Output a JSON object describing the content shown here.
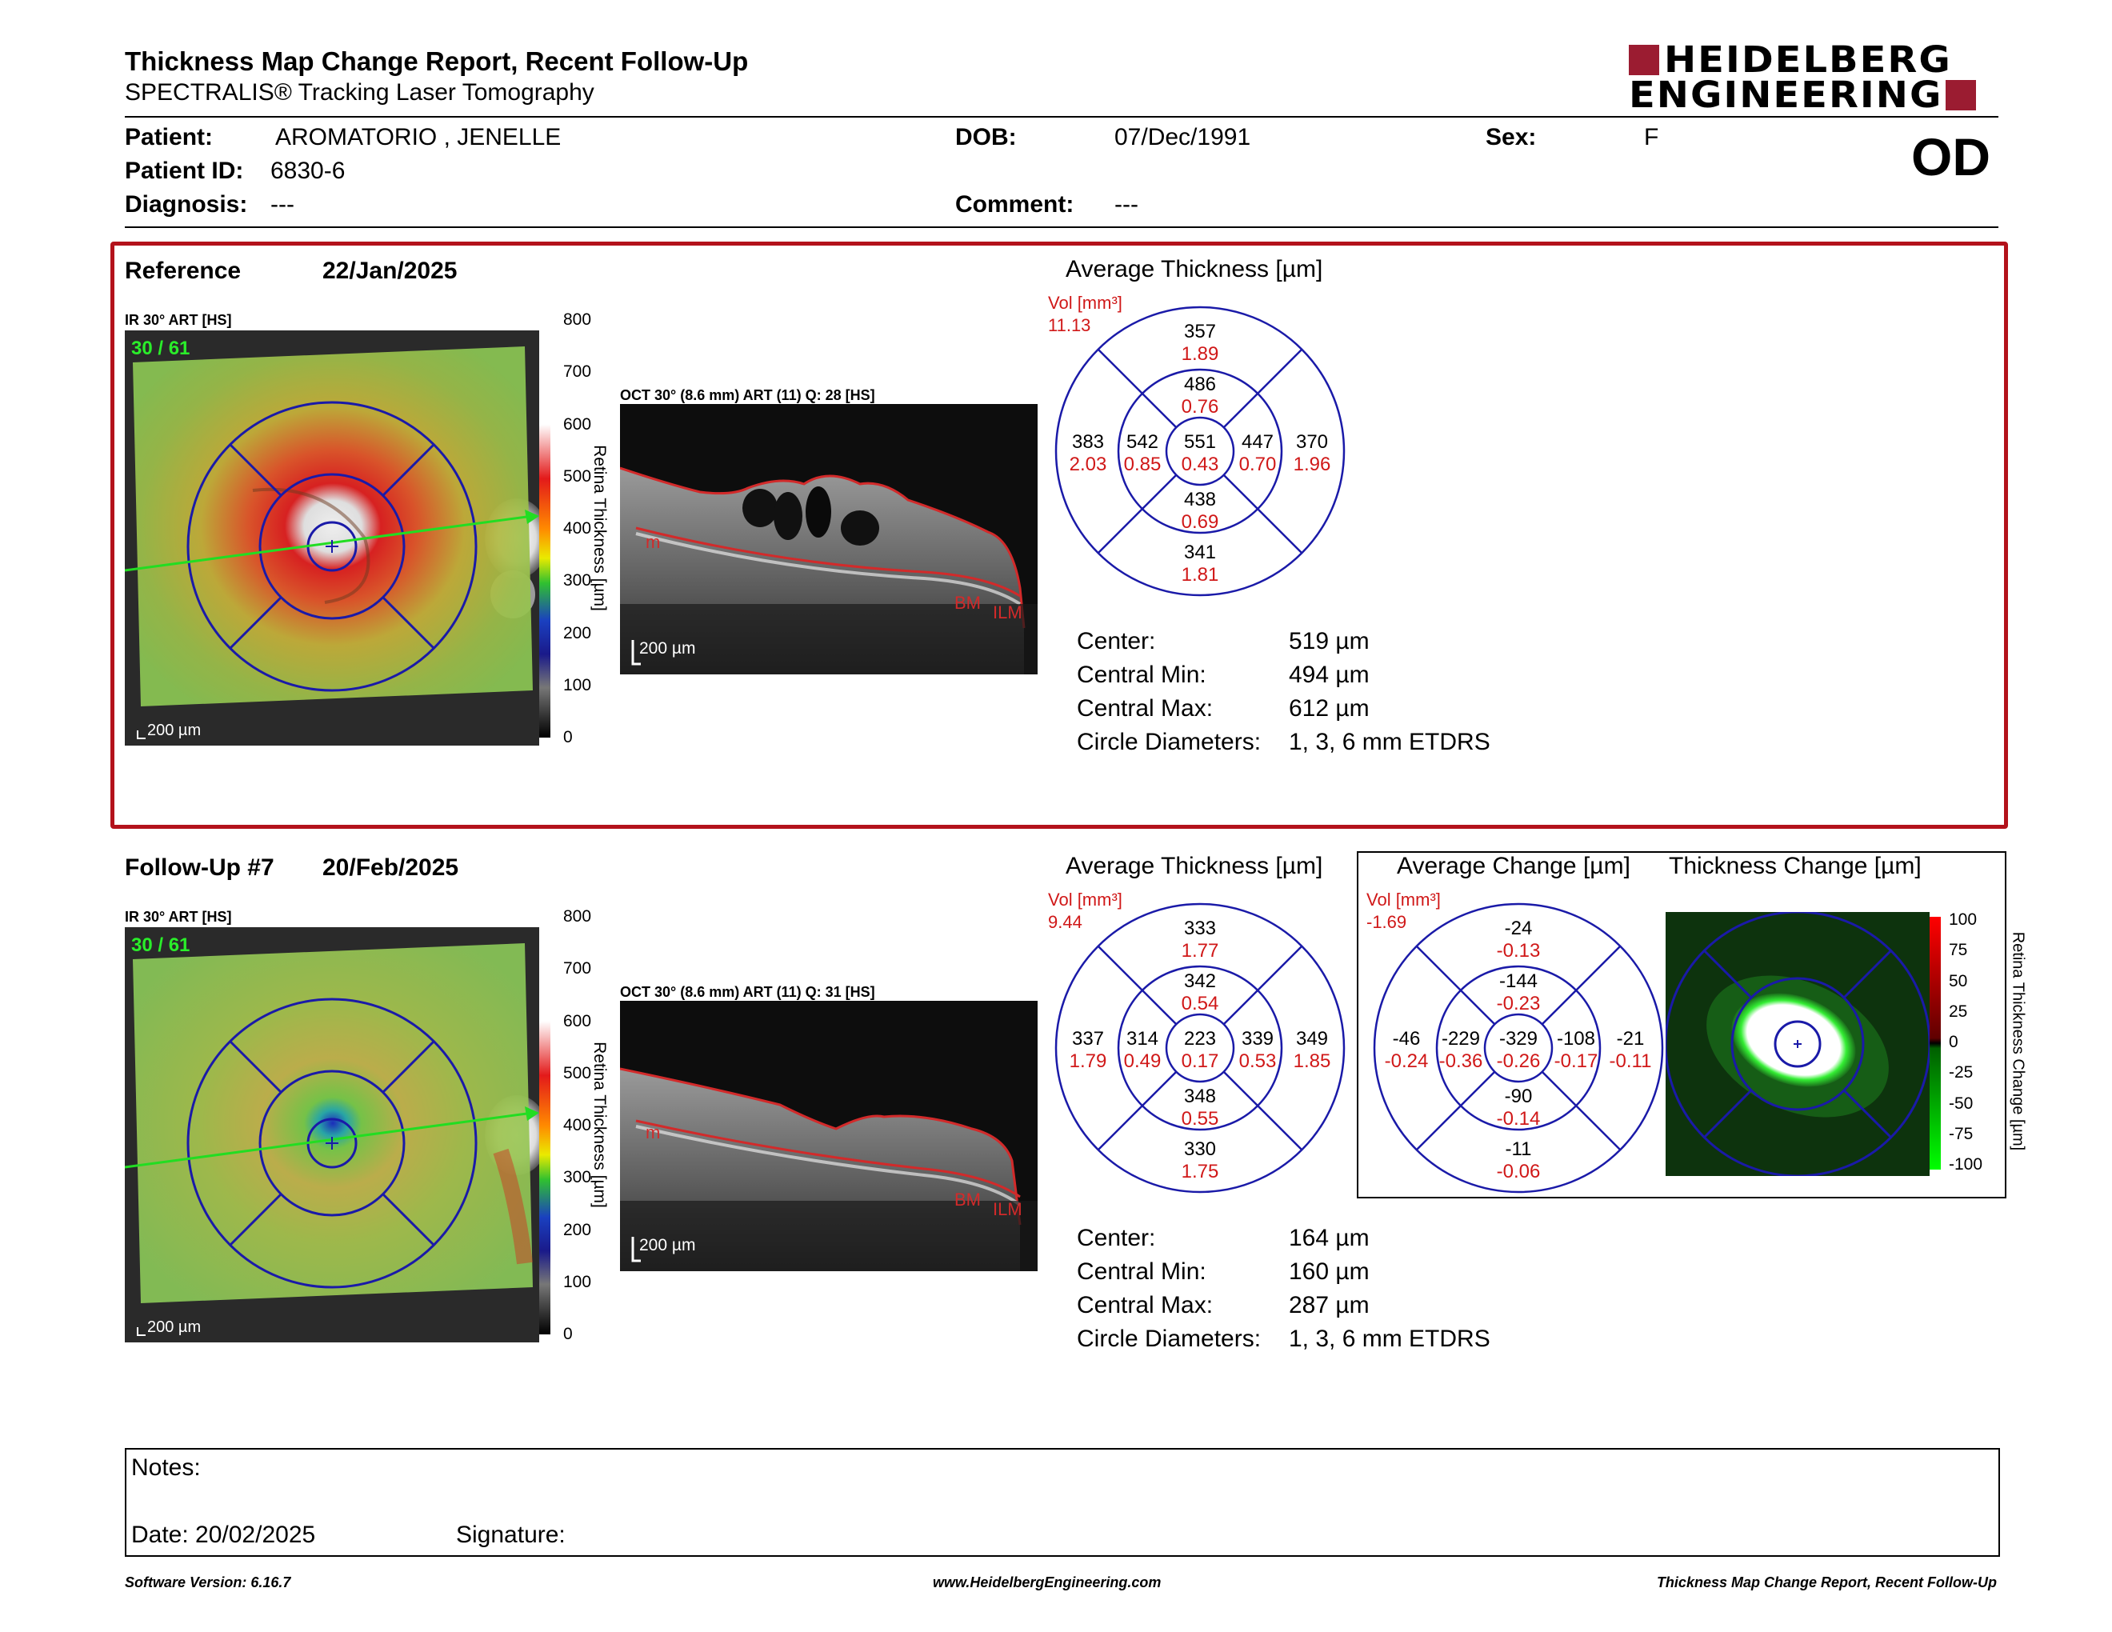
{
  "header": {
    "title": "Thickness Map Change Report, Recent Follow-Up",
    "subtitle": "SPECTRALIS® Tracking Laser Tomography",
    "logo_line1": "HEIDELBERG",
    "logo_line2": "ENGINEERING",
    "eye": "OD"
  },
  "patient": {
    "name_label": "Patient:",
    "name": "AROMATORIO , JENELLE",
    "id_label": "Patient ID:",
    "id": "6830-6",
    "diagnosis_label": "Diagnosis:",
    "diagnosis": "---",
    "dob_label": "DOB:",
    "dob": "07/Dec/1991",
    "comment_label": "Comment:",
    "comment": "---",
    "sex_label": "Sex:",
    "sex": "F"
  },
  "reference": {
    "label": "Reference",
    "date": "22/Jan/2025",
    "ir_label": "IR 30° ART [HS]",
    "ir_overlay": "30 / 61",
    "ir_scale": "200 µm",
    "oct_label": "OCT 30° (8.6 mm) ART (11) Q: 28 [HS]",
    "oct_scale": "200 µm",
    "colorbar_ticks": [
      "800",
      "700",
      "600",
      "500",
      "400",
      "300",
      "200",
      "100",
      "0"
    ],
    "colorbar_title": "Retina Thickness [µm]",
    "layer_labels": [
      "m",
      "BM",
      "ILM"
    ],
    "avg_title": "Average Thickness [µm]",
    "vol_label": "Vol [mm³]",
    "vol_total": "11.13",
    "etdrs": {
      "center": [
        "551",
        "0.43"
      ],
      "inner_sup": [
        "486",
        "0.76"
      ],
      "inner_nas": [
        "447",
        "0.70"
      ],
      "inner_inf": [
        "438",
        "0.69"
      ],
      "inner_tmp": [
        "542",
        "0.85"
      ],
      "outer_sup": [
        "357",
        "1.89"
      ],
      "outer_nas": [
        "370",
        "1.96"
      ],
      "outer_inf": [
        "341",
        "1.81"
      ],
      "outer_tmp": [
        "383",
        "2.03"
      ]
    },
    "stats": [
      {
        "label": "Center:",
        "value": "519 µm"
      },
      {
        "label": "Central Min:",
        "value": "494 µm"
      },
      {
        "label": "Central Max:",
        "value": "612 µm"
      },
      {
        "label": "Circle Diameters:",
        "value": "1, 3, 6 mm ETDRS"
      }
    ]
  },
  "followup": {
    "label": "Follow-Up #7",
    "date": "20/Feb/2025",
    "ir_label": "IR 30° ART [HS]",
    "ir_overlay": "30 / 61",
    "ir_scale": "200 µm",
    "oct_label": "OCT 30° (8.6 mm) ART (11) Q: 31 [HS]",
    "oct_scale": "200 µm",
    "colorbar_ticks": [
      "800",
      "700",
      "600",
      "500",
      "400",
      "300",
      "200",
      "100",
      "0"
    ],
    "colorbar_title": "Retina Thickness [µm]",
    "layer_labels": [
      "m",
      "BM",
      "ILM"
    ],
    "avg_title": "Average Thickness [µm]",
    "vol_label": "Vol [mm³]",
    "vol_total": "9.44",
    "etdrs": {
      "center": [
        "223",
        "0.17"
      ],
      "inner_sup": [
        "342",
        "0.54"
      ],
      "inner_nas": [
        "339",
        "0.53"
      ],
      "inner_inf": [
        "348",
        "0.55"
      ],
      "inner_tmp": [
        "314",
        "0.49"
      ],
      "outer_sup": [
        "333",
        "1.77"
      ],
      "outer_nas": [
        "349",
        "1.85"
      ],
      "outer_inf": [
        "330",
        "1.75"
      ],
      "outer_tmp": [
        "337",
        "1.79"
      ]
    },
    "change_title": "Average Change [µm]",
    "change_vol_label": "Vol [mm³]",
    "change_vol_total": "-1.69",
    "change": {
      "center": [
        "-329",
        "-0.26"
      ],
      "inner_sup": [
        "-144",
        "-0.23"
      ],
      "inner_nas": [
        "-108",
        "-0.17"
      ],
      "inner_inf": [
        "-90",
        "-0.14"
      ],
      "inner_tmp": [
        "-229",
        "-0.36"
      ],
      "outer_sup": [
        "-24",
        "-0.13"
      ],
      "outer_nas": [
        "-21",
        "-0.11"
      ],
      "outer_inf": [
        "-11",
        "-0.06"
      ],
      "outer_tmp": [
        "-46",
        "-0.24"
      ]
    },
    "thickness_change_title": "Thickness Change [µm]",
    "change_colorbar_ticks": [
      "100",
      "75",
      "50",
      "25",
      "0",
      "-25",
      "-50",
      "-75",
      "-100"
    ],
    "change_colorbar_title": "Retina Thickness Change [µm]",
    "stats": [
      {
        "label": "Center:",
        "value": "164 µm"
      },
      {
        "label": "Central Min:",
        "value": "160 µm"
      },
      {
        "label": "Central Max:",
        "value": "287 µm"
      },
      {
        "label": "Circle Diameters:",
        "value": "1, 3, 6 mm ETDRS"
      }
    ]
  },
  "notes": {
    "notes_label": "Notes:",
    "date_label": "Date: 20/02/2025",
    "signature_label": "Signature:"
  },
  "footer": {
    "left": "Software Version: 6.16.7",
    "center": "www.HeidelbergEngineering.com",
    "right": "Thickness Map Change Report, Recent Follow-Up"
  },
  "colors": {
    "brand_red": "#9b1c31",
    "box_red": "#b3121b",
    "grid_blue": "#1a1aa8",
    "value_red": "#d01818"
  }
}
